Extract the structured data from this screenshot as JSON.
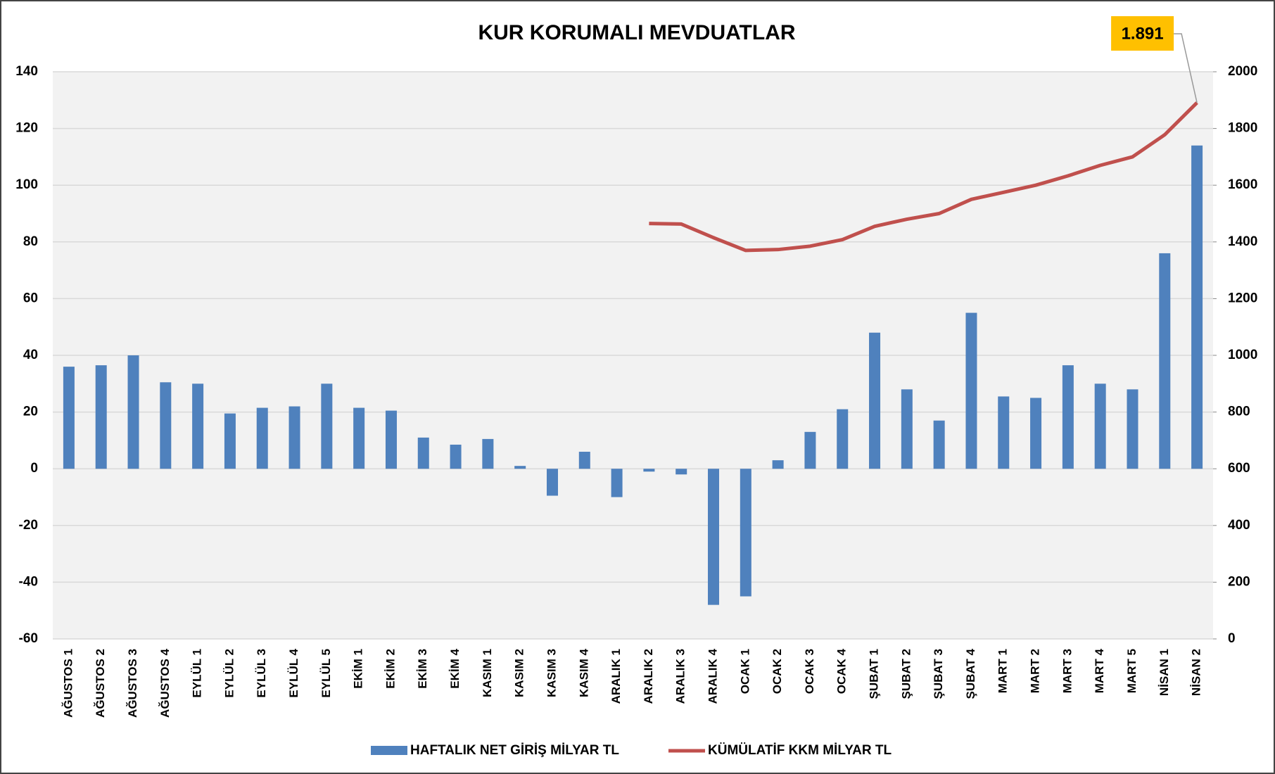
{
  "chart_data": {
    "type": "bar",
    "title": "KUR KORUMALI MEVDUATLAR",
    "categories": [
      "AĞUSTOS 1",
      "AĞUSTOS 2",
      "AĞUSTOS 3",
      "AĞUSTOS 4",
      "EYLÜL 1",
      "EYLÜL 2",
      "EYLÜL 3",
      "EYLÜL 4",
      "EYLÜL 5",
      "EKİM 1",
      "EKİM 2",
      "EKİM 3",
      "EKİM 4",
      "KASIM 1",
      "KASIM 2",
      "KASIM 3",
      "KASIM 4",
      "ARALIK 1",
      "ARALIK 2",
      "ARALIK 3",
      "ARALIK 4",
      "OCAK 1",
      "OCAK 2",
      "OCAK 3",
      "OCAK 4",
      "ŞUBAT 1",
      "ŞUBAT 2",
      "ŞUBAT 3",
      "ŞUBAT 4",
      "MART 1",
      "MART 2",
      "MART 3",
      "MART 4",
      "MART 5",
      "NİSAN 1",
      "NİSAN 2"
    ],
    "series": [
      {
        "name": "HAFTALIK NET GİRİŞ MİLYAR TL",
        "type": "bar",
        "color": "#4f81bd",
        "axis": "y",
        "values": [
          36,
          36.5,
          40,
          30.5,
          30,
          19.5,
          21.5,
          22,
          30,
          21.5,
          20.5,
          11,
          8.5,
          10.5,
          1,
          -9.5,
          6,
          -10,
          -1,
          -2,
          -48,
          -45,
          3,
          13,
          21,
          48,
          28,
          17,
          55,
          25.5,
          25,
          36.5,
          30,
          28,
          76,
          114
        ]
      },
      {
        "name": "KÜMÜLATİF KKM MİLYAR TL",
        "type": "line",
        "color": "#c0504d",
        "axis": "y2",
        "values": [
          null,
          null,
          null,
          null,
          null,
          null,
          null,
          null,
          null,
          null,
          null,
          null,
          null,
          null,
          null,
          null,
          null,
          null,
          1465,
          1463,
          1415,
          1370,
          1373,
          1385,
          1408,
          1455,
          1480,
          1500,
          1550,
          1575,
          1600,
          1633,
          1670,
          1700,
          1778,
          1891
        ],
        "value_labels": [
          null,
          null,
          null,
          null,
          null,
          null,
          null,
          null,
          null,
          null,
          null,
          null,
          null,
          null,
          null,
          null,
          null,
          null,
          null,
          null,
          null,
          null,
          null,
          null,
          null,
          null,
          null,
          null,
          null,
          null,
          null,
          null,
          null,
          null,
          null,
          "1.891"
        ]
      }
    ],
    "ylim": [
      -60,
      140
    ],
    "yticks": [
      -60,
      -40,
      -20,
      0,
      20,
      40,
      60,
      80,
      100,
      120,
      140
    ],
    "y2lim": [
      0,
      2000
    ],
    "y2ticks": [
      0,
      200,
      400,
      600,
      800,
      1000,
      1200,
      1400,
      1600,
      1800,
      2000
    ],
    "grid": true,
    "legend": "bottom"
  }
}
